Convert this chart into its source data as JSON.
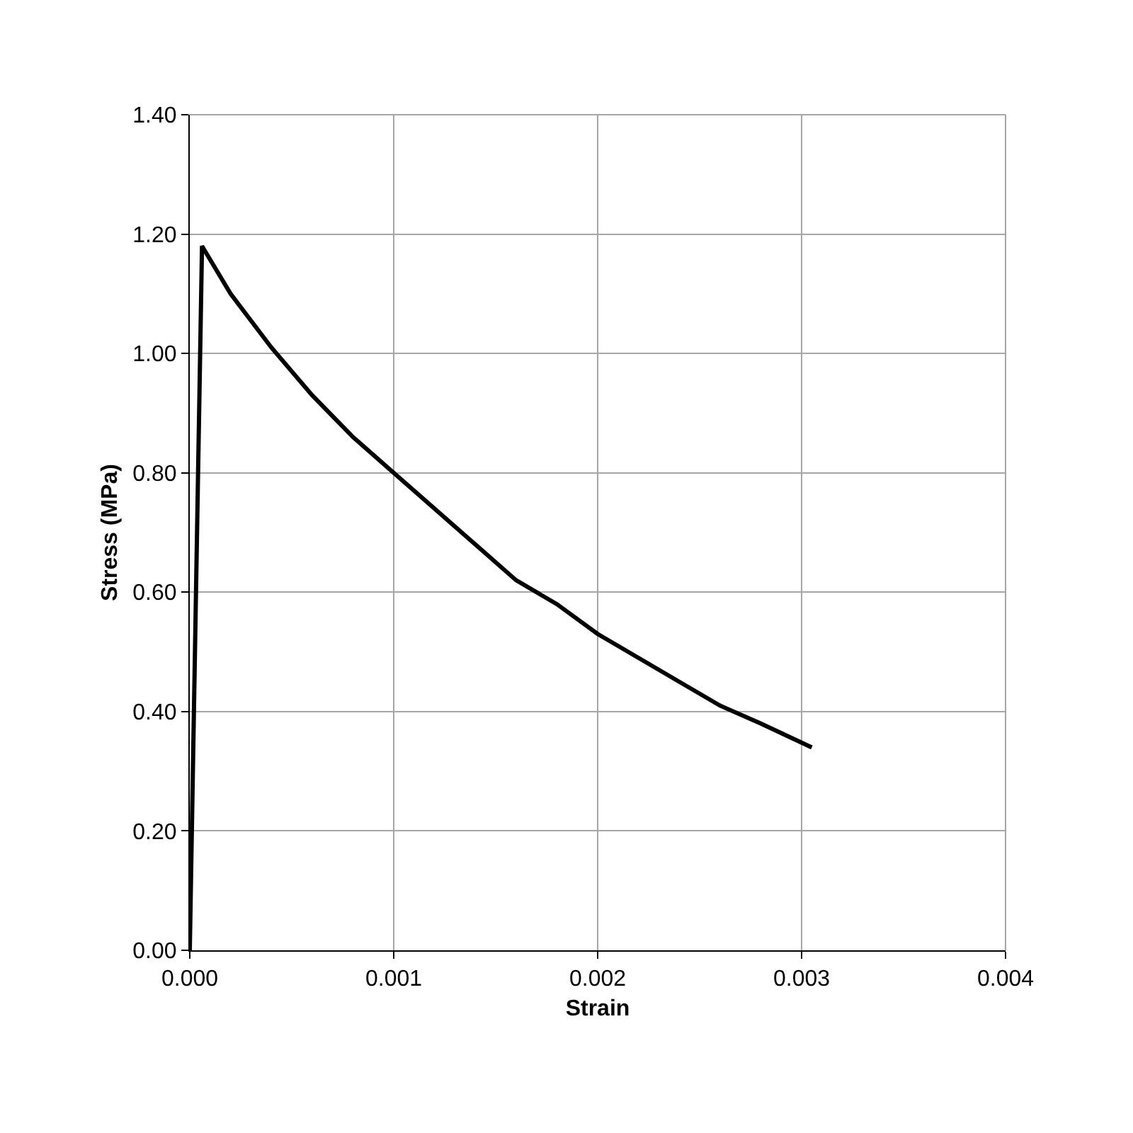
{
  "chart_data": {
    "type": "line",
    "xlabel": "Strain",
    "ylabel": "Stress (MPa)",
    "xlim": [
      0,
      0.004
    ],
    "xticks": [
      {
        "value": 0,
        "label": "0.000"
      },
      {
        "value": 0.001,
        "label": "0.001"
      },
      {
        "value": 0.002,
        "label": "0.002"
      },
      {
        "value": 0.003,
        "label": "0.003"
      },
      {
        "value": 0.004,
        "label": "0.004"
      }
    ],
    "ylim": [
      0,
      1.4
    ],
    "yticks": [
      {
        "value": 0,
        "label": "0.00"
      },
      {
        "value": 0.2,
        "label": "0.20"
      },
      {
        "value": 0.4,
        "label": "0.40"
      },
      {
        "value": 0.6,
        "label": "0.60"
      },
      {
        "value": 0.8,
        "label": "0.80"
      },
      {
        "value": 1.0,
        "label": "1.00"
      },
      {
        "value": 1.2,
        "label": "1.20"
      },
      {
        "value": 1.4,
        "label": "1.40"
      }
    ],
    "grid": true,
    "marker": "none",
    "line_style": "solid",
    "series": [
      {
        "color": "#000000",
        "x": [
          0,
          6e-05,
          0.0002,
          0.0004,
          0.0006,
          0.0008,
          0.001,
          0.0012,
          0.0014,
          0.0016,
          0.0018,
          0.002,
          0.0022,
          0.0024,
          0.0026,
          0.0028,
          0.00305
        ],
        "values": [
          0,
          1.18,
          1.1,
          1.01,
          0.93,
          0.86,
          0.8,
          0.74,
          0.68,
          0.62,
          0.58,
          0.53,
          0.49,
          0.45,
          0.41,
          0.38,
          0.34
        ]
      }
    ]
  }
}
